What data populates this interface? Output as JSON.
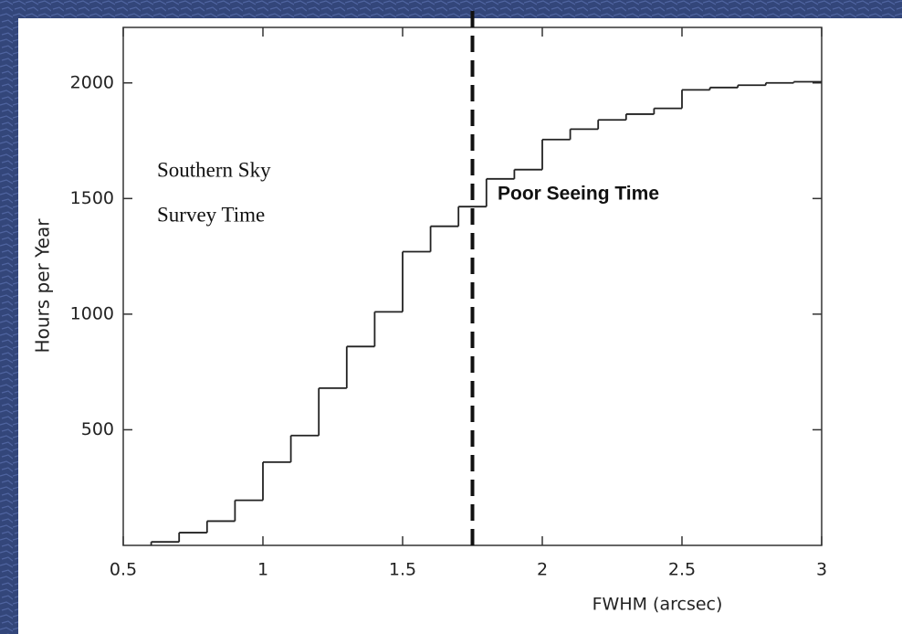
{
  "chart_data": {
    "type": "step-histogram",
    "xlabel": "FWHM (arcsec)",
    "ylabel": "Hours per Year",
    "bins": [
      0.6,
      0.7,
      0.8,
      0.9,
      1.0,
      1.1,
      1.2,
      1.3,
      1.4,
      1.5,
      1.6,
      1.7,
      1.8,
      1.9,
      2.0,
      2.1,
      2.2,
      2.3,
      2.4,
      2.5,
      2.6,
      2.7,
      2.8,
      2.9,
      3.0
    ],
    "values": [
      15,
      55,
      105,
      195,
      360,
      475,
      680,
      860,
      1010,
      1270,
      1380,
      1465,
      1585,
      1625,
      1755,
      1800,
      1840,
      1865,
      1890,
      1970,
      1980,
      1990,
      2000,
      2005
    ],
    "color": "#222222",
    "xlim": [
      0.5,
      3
    ],
    "xticks": [
      0.5,
      1,
      1.5,
      2,
      2.5,
      3
    ],
    "ylim": [
      0,
      2240
    ],
    "yticks": [
      500,
      1000,
      1500,
      2000
    ],
    "vline": {
      "x": 1.75,
      "color": "#111111",
      "dashed": true
    },
    "annotations": [
      "Southern Sky",
      "Survey Time",
      "Poor Seeing Time"
    ]
  }
}
